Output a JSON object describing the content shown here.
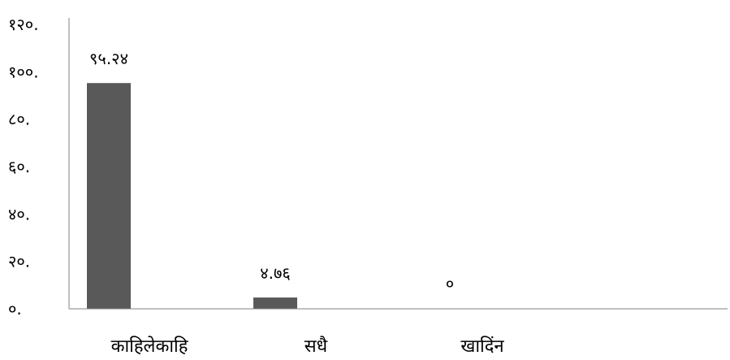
{
  "chart_data": {
    "type": "bar",
    "categories": [
      "काहिलेकाहि",
      "सधै",
      "खादिंन"
    ],
    "values": [
      95.24,
      4.76,
      0
    ],
    "data_labels": [
      "९५.२४",
      "४.७६",
      "०"
    ],
    "ylim": [
      0,
      120
    ],
    "y_ticks": [
      0,
      20,
      40,
      60,
      80,
      100,
      120
    ],
    "y_tick_labels": [
      "०.",
      "२०.",
      "४०.",
      "६०.",
      "८०.",
      "१००.",
      "१२०."
    ],
    "title": "",
    "xlabel": "",
    "ylabel": "",
    "grid": false,
    "legend": "none",
    "bar_color": "#595959"
  }
}
